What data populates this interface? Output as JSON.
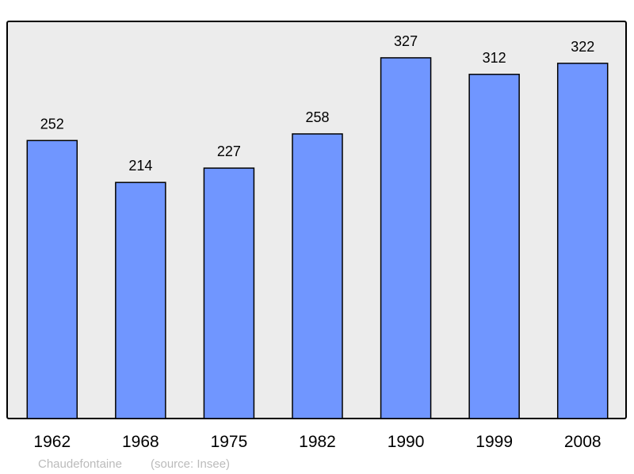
{
  "chart_data": {
    "type": "bar",
    "title": "",
    "xlabel": "",
    "ylabel": "",
    "categories": [
      "1962",
      "1968",
      "1975",
      "1982",
      "1990",
      "1999",
      "2008"
    ],
    "values": [
      252,
      214,
      227,
      258,
      327,
      312,
      322
    ],
    "ylim": [
      0,
      360
    ],
    "grid": false,
    "data_labels": true,
    "colors": {
      "bar": "#7096ff",
      "plot_background": "#ececec",
      "border": "#000000"
    }
  },
  "caption": {
    "place": "Chaudefontaine",
    "source": "(source: Insee)"
  }
}
